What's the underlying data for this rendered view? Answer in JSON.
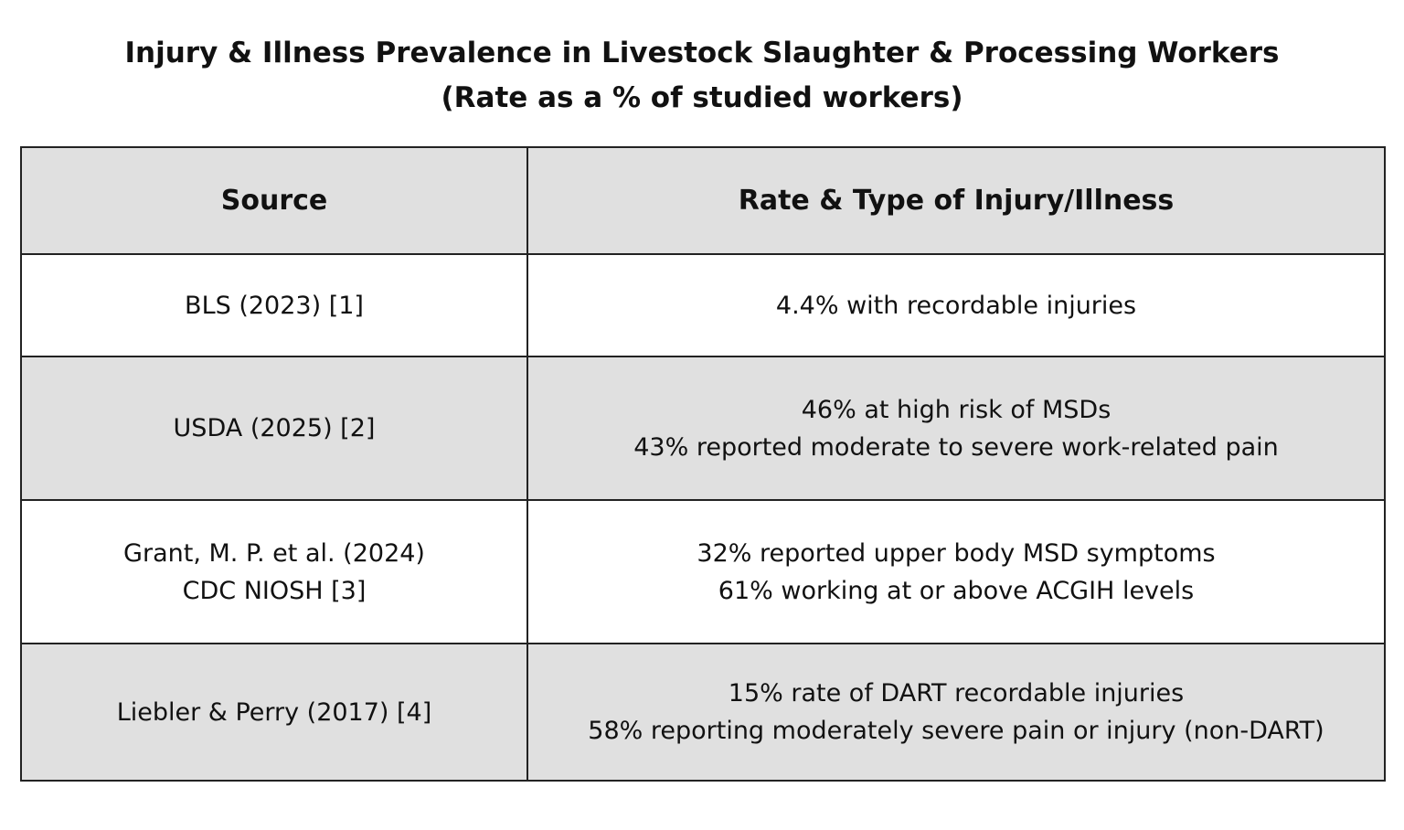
{
  "title": {
    "line1": "Injury & Illness Prevalence in Livestock Slaughter & Processing Workers",
    "line2": "(Rate as a % of studied workers)"
  },
  "table": {
    "headers": {
      "source": "Source",
      "rate": "Rate & Type of Injury/Illness"
    },
    "rows": [
      {
        "source": [
          "BLS (2023) [1]"
        ],
        "rate": [
          "4.4% with recordable injuries"
        ]
      },
      {
        "source": [
          "USDA (2025) [2]"
        ],
        "rate": [
          "46% at high risk of MSDs",
          "43% reported moderate to severe work-related pain"
        ]
      },
      {
        "source": [
          "Grant, M. P. et al. (2024)",
          "CDC NIOSH [3]"
        ],
        "rate": [
          "32% reported upper body MSD symptoms",
          "61% working at or above ACGIH levels"
        ]
      },
      {
        "source": [
          "Liebler & Perry (2017) [4]"
        ],
        "rate": [
          "15% rate of DART recordable injuries",
          "58% reporting moderately severe pain or injury (non-DART)"
        ]
      }
    ]
  },
  "colors": {
    "shaded_row": "#e0e0e0",
    "border": "#222222",
    "text": "#111111"
  }
}
